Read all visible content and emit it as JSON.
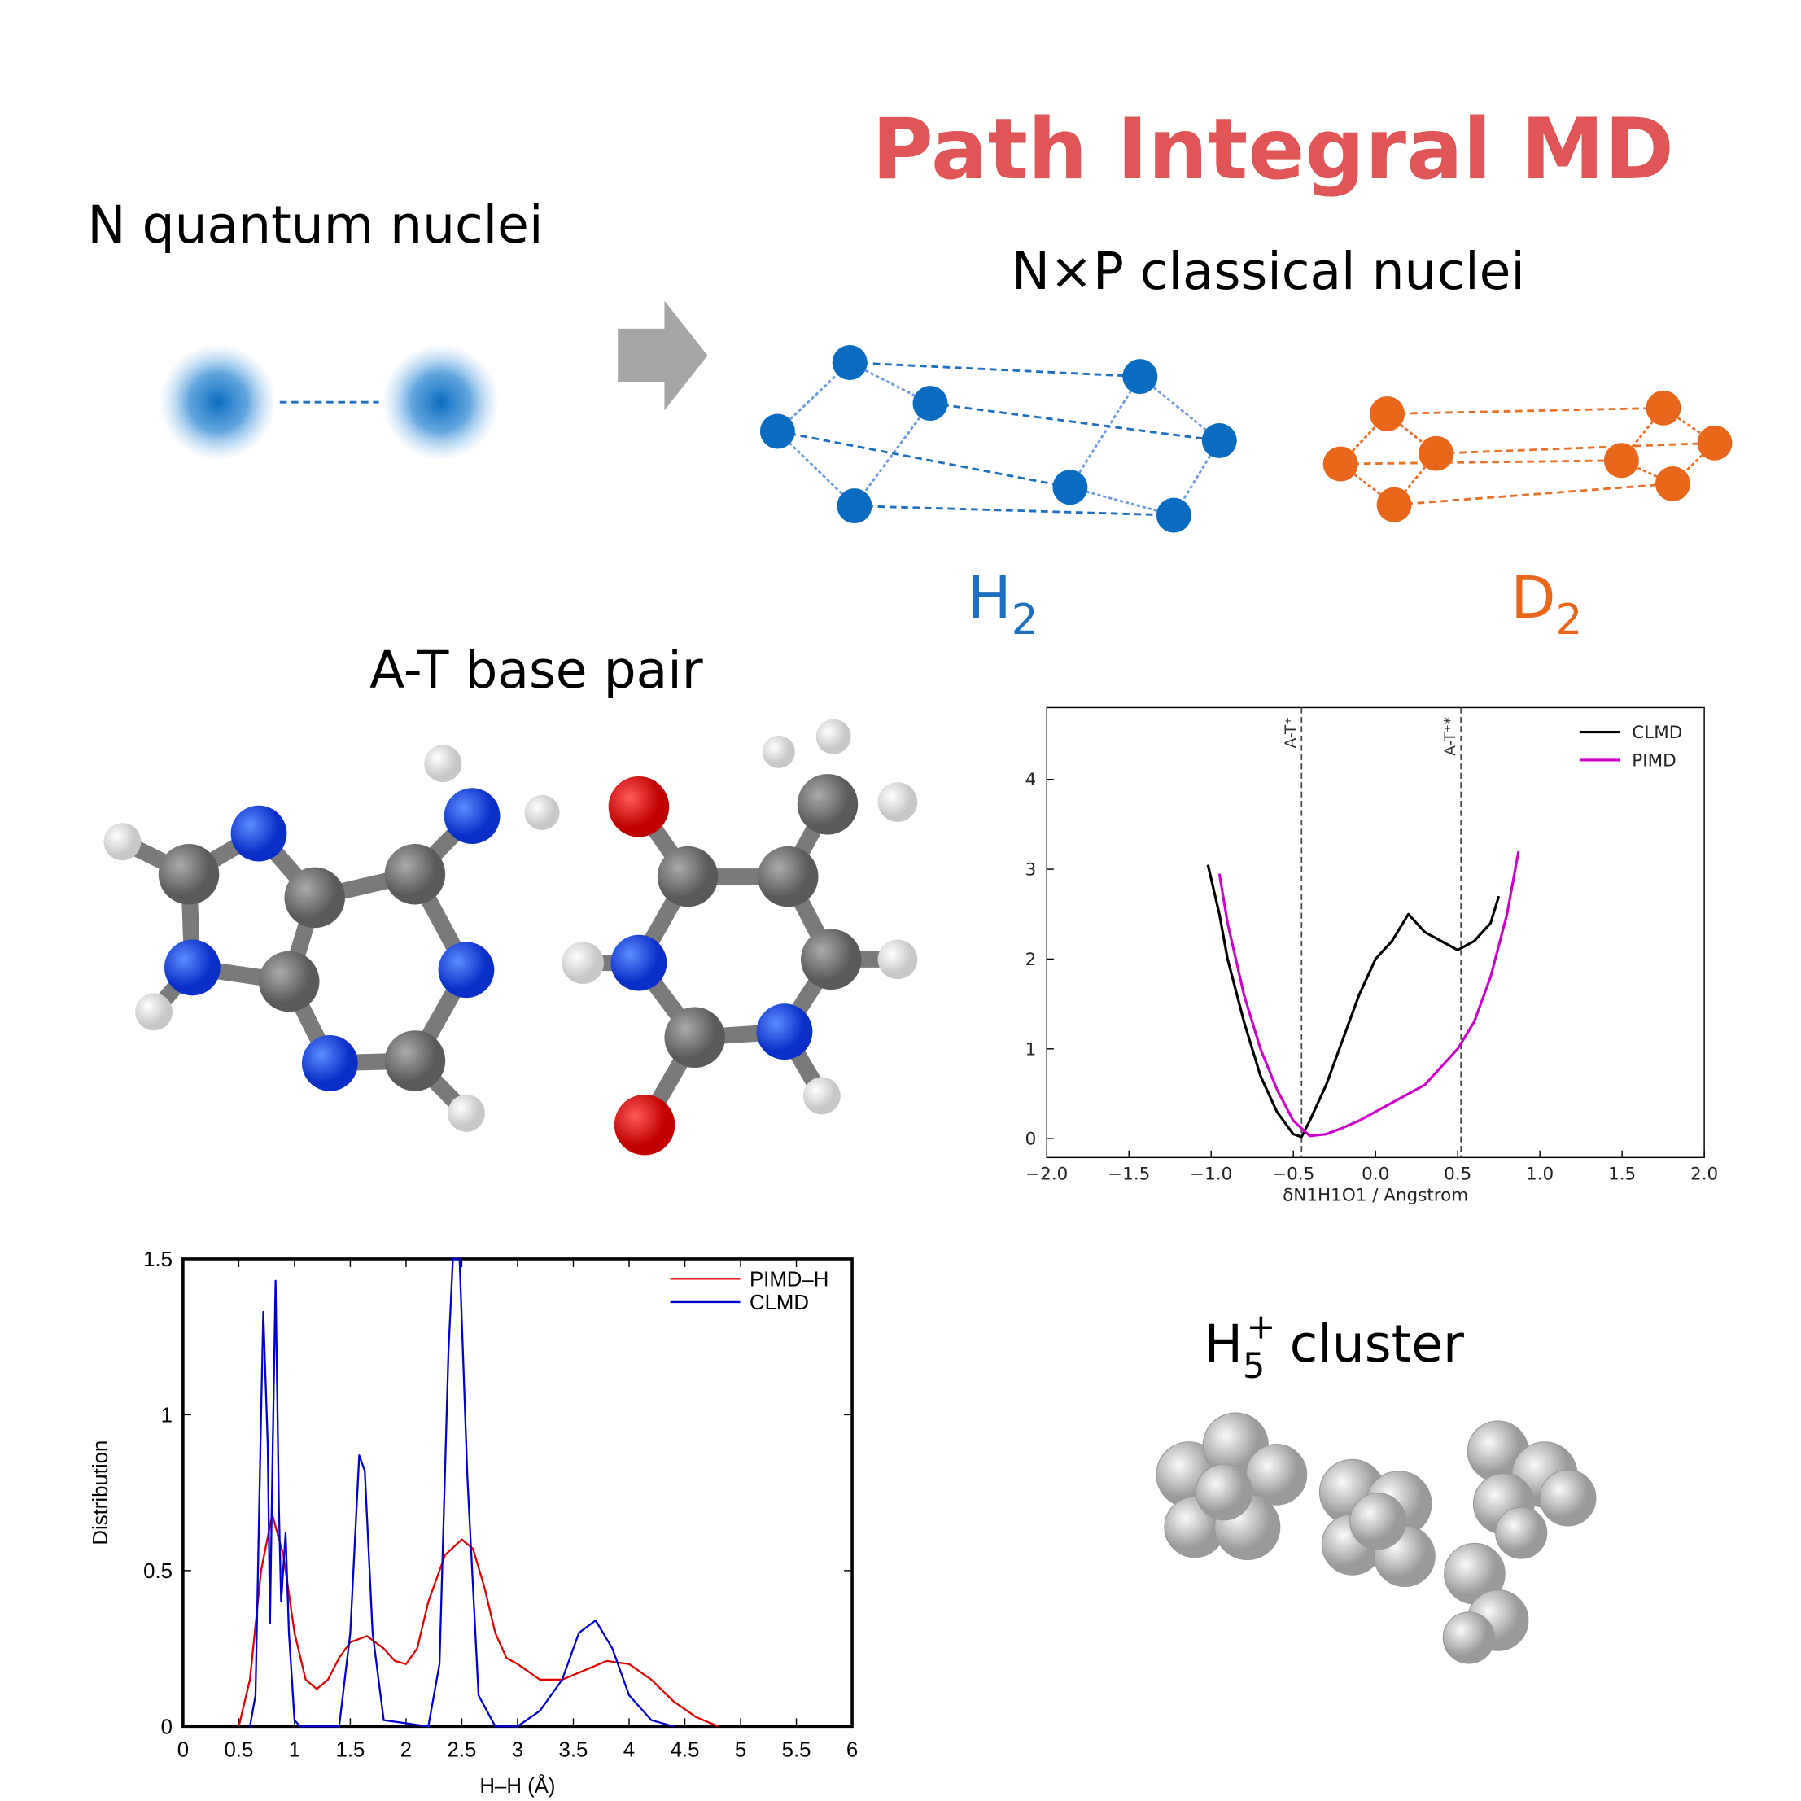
{
  "header": {
    "title": "Path Integral MD",
    "quantum_label": "N quantum nuclei",
    "classical_label": "N×P classical nuclei",
    "h2": {
      "element": "H",
      "subscript": "2"
    },
    "d2": {
      "element": "D",
      "subscript": "2"
    },
    "base_pair_label": "A-T base pair",
    "cluster_label": {
      "element": "H",
      "subscript": "5",
      "superscript": "+",
      "rest": "cluster"
    }
  },
  "chart_data": [
    {
      "type": "line",
      "xlabel": "δN1H1O1 / Angstrom",
      "xlim": [
        -2,
        2
      ],
      "ylim": [
        -0.21,
        4.8
      ],
      "xticks": [
        {
          "value": -2,
          "label": "−2.0"
        },
        {
          "value": -1.5,
          "label": "−1.5"
        },
        {
          "value": -1,
          "label": "−1.0"
        },
        {
          "value": -0.5,
          "label": "−0.5"
        },
        {
          "value": 0,
          "label": "0.0"
        },
        0.5,
        {
          "value": 1,
          "label": "1.0"
        },
        1.5,
        {
          "value": 2,
          "label": "2.0"
        }
      ],
      "yticks": [
        0,
        1,
        2,
        3,
        4
      ],
      "legend": "upper right",
      "annotations": [
        {
          "text": "A-T⁺",
          "x": -0.45
        },
        {
          "text": "A-T⁺*",
          "x": 0.52
        }
      ],
      "series": [
        {
          "name": "CLMD",
          "color": "#000000",
          "x": [
            -1.02,
            -0.95,
            -0.9,
            -0.8,
            -0.7,
            -0.6,
            -0.5,
            -0.45,
            -0.4,
            -0.3,
            -0.2,
            -0.1,
            0,
            0.1,
            0.2,
            0.3,
            0.4,
            0.5,
            0.6,
            0.7,
            0.75
          ],
          "values": [
            3.05,
            2.5,
            2.0,
            1.3,
            0.7,
            0.3,
            0.05,
            0.02,
            0.2,
            0.6,
            1.1,
            1.6,
            2.0,
            2.2,
            2.5,
            2.3,
            2.2,
            2.1,
            2.2,
            2.4,
            2.7
          ]
        },
        {
          "name": "PIMD",
          "color": "#cc00cc",
          "x": [
            -0.95,
            -0.9,
            -0.8,
            -0.7,
            -0.6,
            -0.5,
            -0.4,
            -0.3,
            -0.2,
            -0.1,
            0,
            0.1,
            0.2,
            0.3,
            0.4,
            0.5,
            0.6,
            0.7,
            0.8,
            0.87
          ],
          "values": [
            2.95,
            2.4,
            1.6,
            1.0,
            0.55,
            0.2,
            0.03,
            0.05,
            0.12,
            0.2,
            0.3,
            0.4,
            0.5,
            0.6,
            0.8,
            1.0,
            1.3,
            1.8,
            2.5,
            3.2
          ]
        }
      ]
    },
    {
      "type": "line",
      "xlabel": "H–H (Å)",
      "ylabel": "Distribution",
      "xlim": [
        0,
        6
      ],
      "ylim": [
        0,
        1.5
      ],
      "xticks": [
        0,
        0.5,
        1,
        1.5,
        2,
        2.5,
        3,
        3.5,
        4,
        4.5,
        5,
        5.5,
        6
      ],
      "yticks": [
        0,
        0.5,
        1,
        1.5
      ],
      "legend": "upper right",
      "series": [
        {
          "name": "PIMD–H",
          "color": "#dd0000",
          "x": [
            0.5,
            0.6,
            0.7,
            0.8,
            0.9,
            1.0,
            1.1,
            1.2,
            1.3,
            1.4,
            1.5,
            1.65,
            1.8,
            1.9,
            2.0,
            2.1,
            2.2,
            2.35,
            2.5,
            2.6,
            2.7,
            2.8,
            2.9,
            3.0,
            3.2,
            3.4,
            3.6,
            3.8,
            4.0,
            4.2,
            4.4,
            4.6,
            4.8
          ],
          "values": [
            0,
            0.15,
            0.5,
            0.68,
            0.55,
            0.3,
            0.15,
            0.12,
            0.15,
            0.22,
            0.27,
            0.29,
            0.25,
            0.21,
            0.2,
            0.25,
            0.4,
            0.55,
            0.6,
            0.57,
            0.45,
            0.3,
            0.22,
            0.2,
            0.15,
            0.15,
            0.18,
            0.21,
            0.2,
            0.15,
            0.08,
            0.03,
            0
          ]
        },
        {
          "name": "CLMD",
          "color": "#0000cc",
          "x": [
            0.6,
            0.65,
            0.7,
            0.72,
            0.76,
            0.78,
            0.8,
            0.83,
            0.86,
            0.88,
            0.92,
            0.95,
            1.0,
            1.05,
            1.4,
            1.5,
            1.58,
            1.63,
            1.7,
            1.8,
            2.2,
            2.3,
            2.38,
            2.42,
            2.48,
            2.55,
            2.65,
            2.8,
            3.0,
            3.2,
            3.4,
            3.55,
            3.7,
            3.85,
            4.0,
            4.2,
            4.4
          ],
          "values": [
            0,
            0.1,
            1.0,
            1.33,
            0.9,
            0.33,
            0.8,
            1.43,
            0.7,
            0.4,
            0.62,
            0.3,
            0.02,
            0,
            0,
            0.3,
            0.87,
            0.82,
            0.3,
            0.02,
            0,
            0.2,
            1.2,
            1.5,
            1.5,
            0.8,
            0.1,
            0,
            0,
            0.05,
            0.15,
            0.3,
            0.34,
            0.25,
            0.1,
            0.02,
            0
          ]
        }
      ]
    }
  ]
}
